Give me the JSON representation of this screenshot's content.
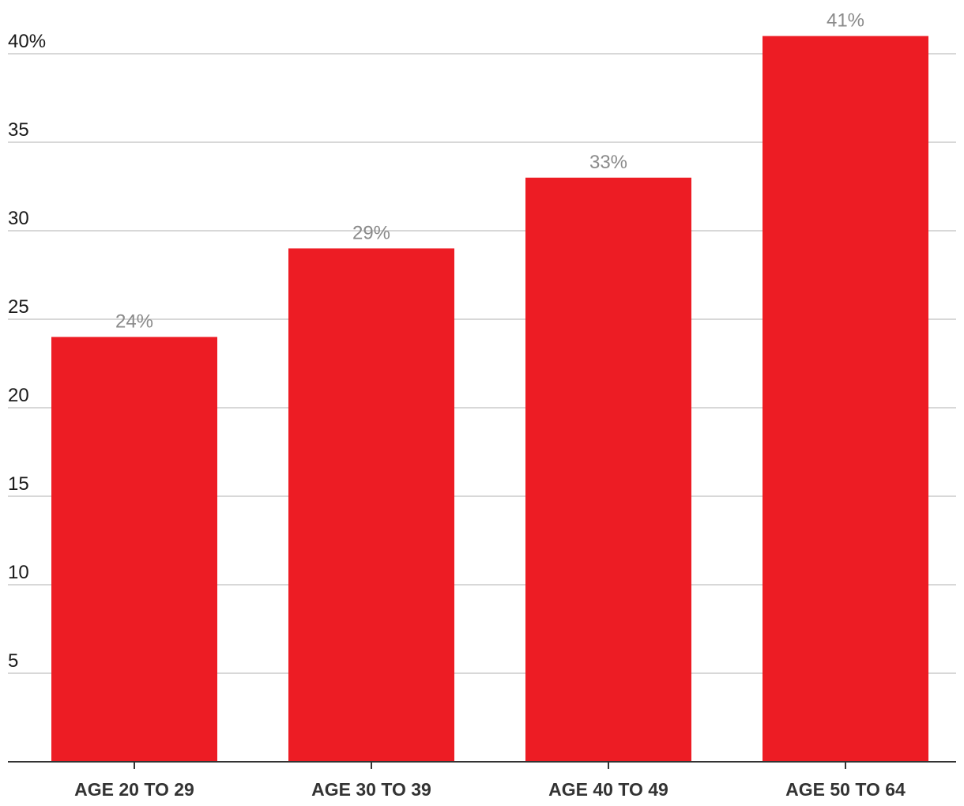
{
  "chart_data": {
    "type": "bar",
    "categories": [
      "AGE 20 TO 29",
      "AGE 30 TO 39",
      "AGE 40 TO 49",
      "AGE 50 TO 64"
    ],
    "values": [
      24,
      29,
      33,
      41
    ],
    "data_labels": [
      "24%",
      "29%",
      "33%",
      "41%"
    ],
    "ylim": [
      0,
      40
    ],
    "yticks": [
      5,
      10,
      15,
      20,
      25,
      30,
      35,
      40
    ],
    "ytick_labels": [
      "5",
      "10",
      "15",
      "20",
      "25",
      "30",
      "35",
      "40%"
    ],
    "grid": true,
    "bar_color": "#ed1c24",
    "grid_color": "#cccccc",
    "axis_color": "#333333",
    "data_label_color": "#8a8a8a"
  }
}
